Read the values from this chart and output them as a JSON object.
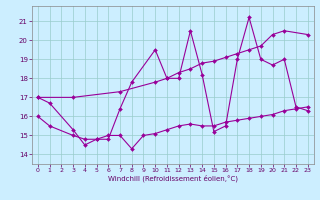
{
  "xlabel": "Windchill (Refroidissement éolien,°C)",
  "bg_color": "#cceeff",
  "line_color": "#990099",
  "grid_color": "#99cccc",
  "xlim": [
    -0.5,
    23.5
  ],
  "ylim": [
    13.5,
    21.8
  ],
  "yticks": [
    14,
    15,
    16,
    17,
    18,
    19,
    20,
    21
  ],
  "xticks": [
    0,
    1,
    2,
    3,
    4,
    5,
    6,
    7,
    8,
    9,
    10,
    11,
    12,
    13,
    14,
    15,
    16,
    17,
    18,
    19,
    20,
    21,
    22,
    23
  ],
  "line1_x": [
    0,
    1,
    3,
    4,
    5,
    6,
    7,
    8,
    10,
    11,
    12,
    13,
    14,
    15,
    16,
    17,
    18,
    19,
    20,
    21,
    22,
    23
  ],
  "line1_y": [
    17.0,
    16.7,
    15.3,
    14.5,
    14.8,
    14.8,
    16.4,
    17.8,
    19.5,
    18.0,
    18.0,
    20.5,
    18.2,
    15.2,
    15.5,
    19.0,
    21.2,
    19.0,
    18.7,
    19.0,
    16.5,
    16.3
  ],
  "line2_x": [
    0,
    3,
    7,
    10,
    11,
    12,
    13,
    14,
    15,
    16,
    17,
    18,
    19,
    20,
    21,
    23
  ],
  "line2_y": [
    17.0,
    17.0,
    17.3,
    17.8,
    18.0,
    18.3,
    18.5,
    18.8,
    18.9,
    19.1,
    19.3,
    19.5,
    19.7,
    20.3,
    20.5,
    20.3
  ],
  "line3_x": [
    0,
    1,
    3,
    4,
    5,
    6,
    7,
    8,
    9,
    10,
    11,
    12,
    13,
    14,
    15,
    16,
    17,
    18,
    19,
    20,
    21,
    22,
    23
  ],
  "line3_y": [
    16.0,
    15.5,
    15.0,
    14.8,
    14.8,
    15.0,
    15.0,
    14.3,
    15.0,
    15.1,
    15.3,
    15.5,
    15.6,
    15.5,
    15.5,
    15.7,
    15.8,
    15.9,
    16.0,
    16.1,
    16.3,
    16.4,
    16.5
  ]
}
